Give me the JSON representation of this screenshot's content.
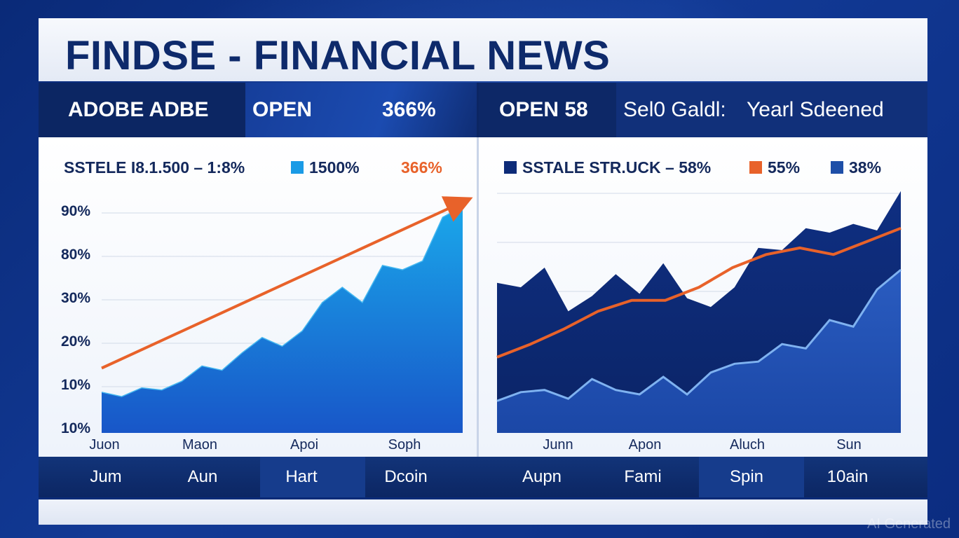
{
  "title": "FINDSE - FINANCIAL NEWS",
  "ticker": {
    "left_name": "ADOBE ADBE",
    "left_status": "OPEN",
    "left_value": "366%",
    "right_status": "OPEN 58",
    "right_text": "Sel0 Galdl:",
    "right_text2": "Yearl Sdeened"
  },
  "colors": {
    "navy": "#0e2a6b",
    "blue_area": "#1a73e0",
    "orange": "#e8622a",
    "dark_area": "#0d2b78",
    "light_line": "#7fb2f0"
  },
  "watermark": "AI Generated",
  "bottom_labels": [
    "Jum",
    "Aun",
    "Hart",
    "Dcoin",
    "Aupn",
    "Fami",
    "Spin",
    "10ain"
  ],
  "chart_data": [
    {
      "type": "area",
      "legend": {
        "label": "SSTELE I8.1.500 – 1:8%",
        "item": "1500%",
        "value": "366%"
      },
      "y_tick_labels": [
        "90%",
        "80%",
        "30%",
        "20%",
        "10%",
        "10%"
      ],
      "x_tick_labels": [
        "Juon",
        "Maon",
        "Apoi",
        "Soph"
      ],
      "ylim": [
        0,
        1
      ],
      "series": [
        {
          "color": "#1a73e0",
          "values": [
            0.18,
            0.16,
            0.2,
            0.19,
            0.23,
            0.3,
            0.28,
            0.36,
            0.43,
            0.39,
            0.46,
            0.59,
            0.66,
            0.59,
            0.76,
            0.74,
            0.78,
            0.98,
            1.03
          ]
        },
        {
          "color": "#e8622a",
          "values": [
            0.29,
            1.05
          ]
        }
      ]
    },
    {
      "type": "area",
      "legend": {
        "label": "SSTALE STR.UCK – 58%",
        "item2": "55%",
        "item3": "38%"
      },
      "x_tick_labels": [
        "Junn",
        "Apon",
        "Aluch",
        "Sun"
      ],
      "ylim": [
        0,
        1
      ],
      "series": [
        {
          "color": "#0d2b78",
          "values": [
            0.68,
            0.66,
            0.75,
            0.55,
            0.62,
            0.72,
            0.63,
            0.77,
            0.61,
            0.57,
            0.66,
            0.84,
            0.83,
            0.93,
            0.91,
            0.95,
            0.92,
            1.1
          ]
        },
        {
          "color": "#e8622a",
          "values": [
            0.34,
            0.4,
            0.47,
            0.55,
            0.6,
            0.6,
            0.66,
            0.75,
            0.81,
            0.84,
            0.81,
            0.87,
            0.93
          ]
        },
        {
          "color": "#7fb2f0",
          "values": [
            0.14,
            0.18,
            0.19,
            0.15,
            0.24,
            0.19,
            0.17,
            0.25,
            0.17,
            0.27,
            0.31,
            0.32,
            0.4,
            0.38,
            0.51,
            0.48,
            0.65,
            0.74
          ]
        }
      ]
    }
  ]
}
